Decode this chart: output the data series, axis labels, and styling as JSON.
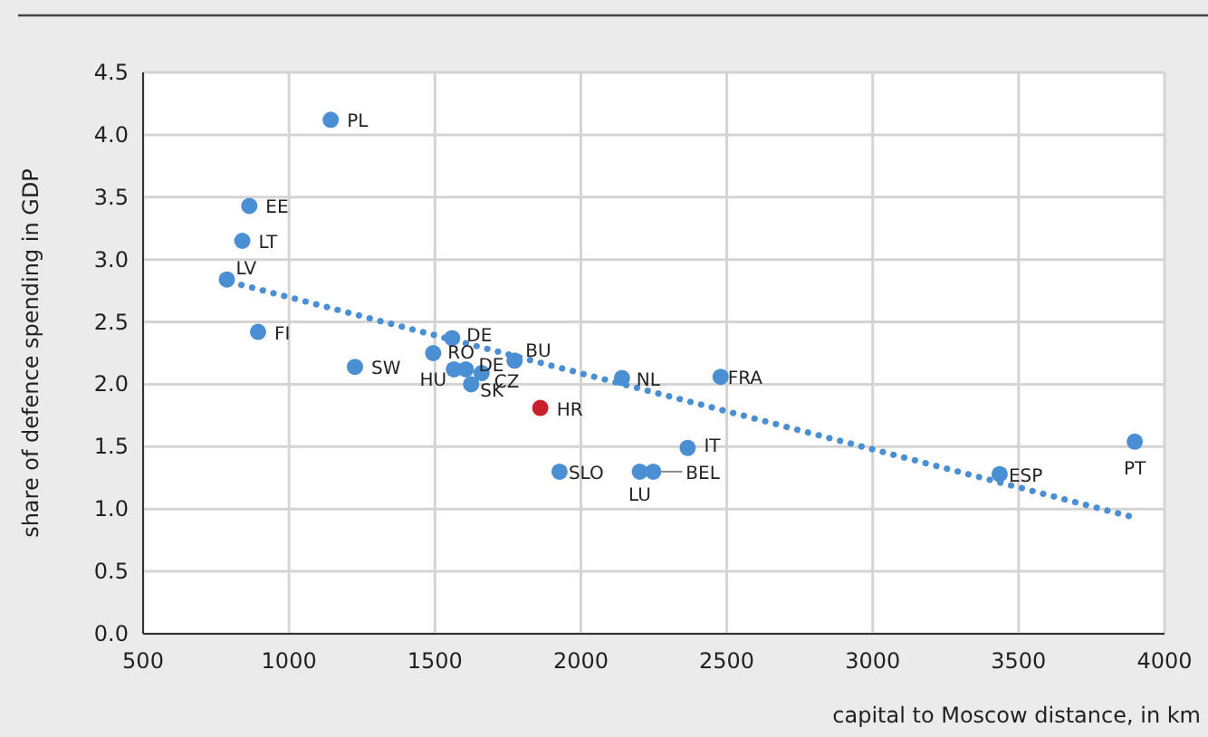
{
  "chart_data": {
    "type": "scatter",
    "xlabel": "capital to Moscow distance, in km",
    "ylabel": "share of defence spending in GDP",
    "series": [
      {
        "color": "#4a8fd4",
        "x": [
          1143,
          864,
          840,
          787,
          894,
          1226,
          1559,
          1494,
          1565,
          1606,
          1660,
          1624,
          1773,
          2141,
          2479,
          1861,
          2366,
          1927,
          2202,
          2248,
          3435,
          3898
        ],
        "values": [
          4.12,
          3.43,
          3.15,
          2.84,
          2.42,
          2.14,
          2.37,
          2.25,
          2.12,
          2.12,
          2.09,
          2.0,
          2.19,
          2.05,
          2.06,
          1.81,
          1.49,
          1.3,
          1.3,
          1.3,
          1.28,
          1.54
        ],
        "colors": [
          null,
          null,
          null,
          null,
          null,
          null,
          null,
          null,
          null,
          null,
          null,
          null,
          null,
          null,
          null,
          "#c8202a",
          null,
          null,
          null,
          null,
          null,
          null
        ],
        "marker": "circle"
      },
      {
        "type": "line",
        "color": "#4a8fd4",
        "x": [
          800,
          3900
        ],
        "values": [
          2.82,
          0.93
        ],
        "line_style": "dotted"
      }
    ],
    "annotations": [
      {
        "text": "PL",
        "x": 1143,
        "y": 4.12
      },
      {
        "text": "EE",
        "x": 864,
        "y": 3.43
      },
      {
        "text": "LT",
        "x": 840,
        "y": 3.15
      },
      {
        "text": "LV",
        "x": 787,
        "y": 2.84
      },
      {
        "text": "FI",
        "x": 894,
        "y": 2.42
      },
      {
        "text": "SW",
        "x": 1226,
        "y": 2.14
      },
      {
        "text": "DE",
        "x": 1559,
        "y": 2.37
      },
      {
        "text": "RO",
        "x": 1494,
        "y": 2.25
      },
      {
        "text": "HU",
        "x": 1565,
        "y": 2.12
      },
      {
        "text": "DE",
        "x": 1606,
        "y": 2.12
      },
      {
        "text": "CZ",
        "x": 1660,
        "y": 2.09
      },
      {
        "text": "SK",
        "x": 1624,
        "y": 2.0
      },
      {
        "text": "BU",
        "x": 1773,
        "y": 2.19
      },
      {
        "text": "NL",
        "x": 2141,
        "y": 2.05
      },
      {
        "text": "FRA",
        "x": 2479,
        "y": 2.06
      },
      {
        "text": "HR",
        "x": 1861,
        "y": 1.81
      },
      {
        "text": "IT",
        "x": 2366,
        "y": 1.49
      },
      {
        "text": "SLO",
        "x": 1927,
        "y": 1.3
      },
      {
        "text": "LU",
        "x": 2202,
        "y": 1.3
      },
      {
        "text": "BEL",
        "x": 2248,
        "y": 1.3
      },
      {
        "text": "ESP",
        "x": 3435,
        "y": 1.28
      },
      {
        "text": "PT",
        "x": 3898,
        "y": 1.54
      }
    ],
    "xlim": [
      500,
      4000
    ],
    "xticks": [
      500,
      1000,
      1500,
      2000,
      2500,
      3000,
      3500,
      4000
    ],
    "ylim": [
      0,
      4.5
    ],
    "yticks": [
      {
        "value": 0,
        "label": "0.0"
      },
      {
        "value": 0.5,
        "label": "0.5"
      },
      {
        "value": 1,
        "label": "1.0"
      },
      {
        "value": 1.5,
        "label": "1.5"
      },
      {
        "value": 2,
        "label": "2.0"
      },
      {
        "value": 2.5,
        "label": "2.5"
      },
      {
        "value": 3,
        "label": "3.0"
      },
      {
        "value": 3.5,
        "label": "3.5"
      },
      {
        "value": 4,
        "label": "4.0"
      },
      {
        "value": 4.5,
        "label": "4.5"
      }
    ],
    "grid": true
  }
}
